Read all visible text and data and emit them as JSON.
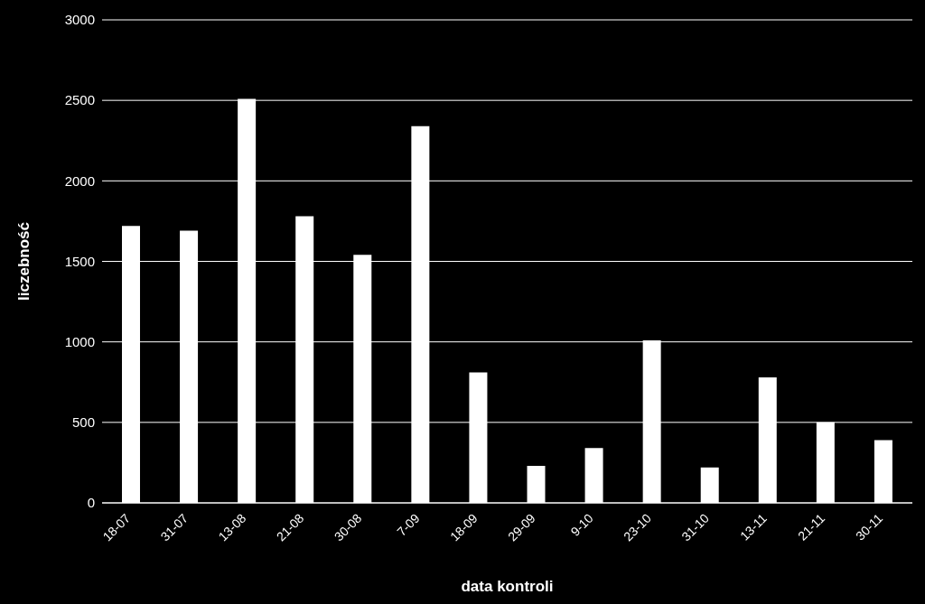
{
  "chart_data": {
    "type": "bar",
    "xlabel": "data kontroli",
    "ylabel": "liczebność",
    "categories": [
      "18-07",
      "31-07",
      "13-08",
      "21-08",
      "30-08",
      "7-09",
      "18-09",
      "29-09",
      "9-10",
      "23-10",
      "31-10",
      "13-11",
      "21-11",
      "30-11"
    ],
    "values": [
      1720,
      1690,
      2510,
      1780,
      1540,
      2340,
      810,
      230,
      340,
      1010,
      220,
      780,
      500,
      390
    ],
    "color": "#ffffff",
    "ylim": [
      0,
      3000
    ],
    "yticks": [
      0,
      500,
      1000,
      1500,
      2000,
      2500,
      3000
    ],
    "grid": "y",
    "legend": false
  }
}
